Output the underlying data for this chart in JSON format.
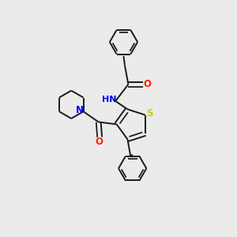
{
  "background_color": "#ebebeb",
  "bond_color": "#1a1a1a",
  "atom_colors": {
    "O": "#ff2000",
    "N": "#0000ee",
    "S": "#cccc00",
    "C": "#1a1a1a"
  },
  "lw": 1.4,
  "figsize": [
    3.0,
    3.0
  ],
  "dpi": 100
}
